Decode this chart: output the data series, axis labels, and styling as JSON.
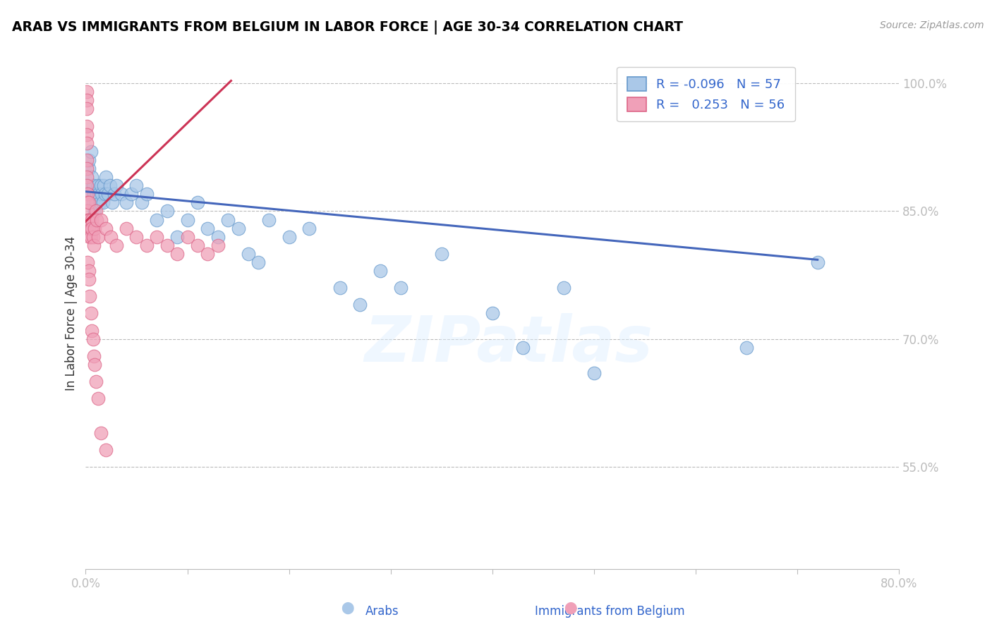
{
  "title": "ARAB VS IMMIGRANTS FROM BELGIUM IN LABOR FORCE | AGE 30-34 CORRELATION CHART",
  "source": "Source: ZipAtlas.com",
  "ylabel": "In Labor Force | Age 30-34",
  "legend_labels": [
    "Arabs",
    "Immigrants from Belgium"
  ],
  "legend_r_values": [
    "-0.096",
    "0.253"
  ],
  "legend_n_values": [
    "57",
    "56"
  ],
  "watermark": "ZIPatlas",
  "blue_color": "#aac8e8",
  "pink_color": "#f0a0b8",
  "blue_edge_color": "#6699cc",
  "pink_edge_color": "#dd6688",
  "blue_line_color": "#4466bb",
  "pink_line_color": "#cc3355",
  "x_min": 0.0,
  "x_max": 0.8,
  "y_min": 0.43,
  "y_max": 1.03,
  "y_ticks": [
    0.55,
    0.7,
    0.85,
    1.0
  ],
  "y_tick_labels": [
    "55.0%",
    "70.0%",
    "85.0%",
    "100.0%"
  ],
  "x_ticks": [
    0.0,
    0.1,
    0.2,
    0.3,
    0.4,
    0.5,
    0.6,
    0.7,
    0.8
  ],
  "x_tick_labels": [
    "0.0%",
    "",
    "",
    "",
    "",
    "",
    "",
    "",
    "80.0%"
  ],
  "blue_x": [
    0.002,
    0.003,
    0.003,
    0.004,
    0.005,
    0.006,
    0.007,
    0.007,
    0.008,
    0.009,
    0.01,
    0.011,
    0.012,
    0.013,
    0.014,
    0.015,
    0.016,
    0.017,
    0.018,
    0.019,
    0.02,
    0.022,
    0.024,
    0.026,
    0.028,
    0.03,
    0.035,
    0.04,
    0.045,
    0.05,
    0.055,
    0.06,
    0.07,
    0.08,
    0.09,
    0.1,
    0.11,
    0.12,
    0.13,
    0.14,
    0.15,
    0.16,
    0.17,
    0.18,
    0.2,
    0.22,
    0.25,
    0.27,
    0.29,
    0.31,
    0.35,
    0.4,
    0.43,
    0.47,
    0.5,
    0.65,
    0.72
  ],
  "blue_y": [
    0.88,
    0.9,
    0.91,
    0.87,
    0.92,
    0.89,
    0.86,
    0.88,
    0.87,
    0.85,
    0.86,
    0.87,
    0.88,
    0.87,
    0.86,
    0.88,
    0.87,
    0.86,
    0.88,
    0.87,
    0.89,
    0.87,
    0.88,
    0.86,
    0.87,
    0.88,
    0.87,
    0.86,
    0.87,
    0.88,
    0.86,
    0.87,
    0.84,
    0.85,
    0.82,
    0.84,
    0.86,
    0.83,
    0.82,
    0.84,
    0.83,
    0.8,
    0.79,
    0.84,
    0.82,
    0.83,
    0.76,
    0.74,
    0.78,
    0.76,
    0.8,
    0.73,
    0.69,
    0.76,
    0.66,
    0.69,
    0.79
  ],
  "pink_x": [
    0.001,
    0.001,
    0.001,
    0.001,
    0.001,
    0.001,
    0.001,
    0.001,
    0.001,
    0.001,
    0.002,
    0.002,
    0.002,
    0.002,
    0.003,
    0.003,
    0.003,
    0.004,
    0.004,
    0.005,
    0.005,
    0.006,
    0.006,
    0.007,
    0.008,
    0.009,
    0.01,
    0.011,
    0.012,
    0.015,
    0.02,
    0.025,
    0.03,
    0.04,
    0.05,
    0.06,
    0.07,
    0.08,
    0.09,
    0.1,
    0.11,
    0.12,
    0.13,
    0.002,
    0.003,
    0.003,
    0.004,
    0.005,
    0.006,
    0.007,
    0.008,
    0.009,
    0.01,
    0.012,
    0.015,
    0.02
  ],
  "pink_y": [
    0.99,
    0.98,
    0.97,
    0.95,
    0.94,
    0.93,
    0.91,
    0.9,
    0.89,
    0.88,
    0.87,
    0.86,
    0.85,
    0.84,
    0.86,
    0.84,
    0.83,
    0.82,
    0.84,
    0.83,
    0.82,
    0.84,
    0.83,
    0.82,
    0.81,
    0.83,
    0.85,
    0.84,
    0.82,
    0.84,
    0.83,
    0.82,
    0.81,
    0.83,
    0.82,
    0.81,
    0.82,
    0.81,
    0.8,
    0.82,
    0.81,
    0.8,
    0.81,
    0.79,
    0.78,
    0.77,
    0.75,
    0.73,
    0.71,
    0.7,
    0.68,
    0.67,
    0.65,
    0.63,
    0.59,
    0.57
  ],
  "blue_trend_x0": 0.0,
  "blue_trend_x1": 0.72,
  "blue_trend_y0": 0.873,
  "blue_trend_y1": 0.793,
  "pink_trend_x0": 0.0,
  "pink_trend_x1": 0.143,
  "pink_trend_y0": 0.838,
  "pink_trend_y1": 1.003
}
